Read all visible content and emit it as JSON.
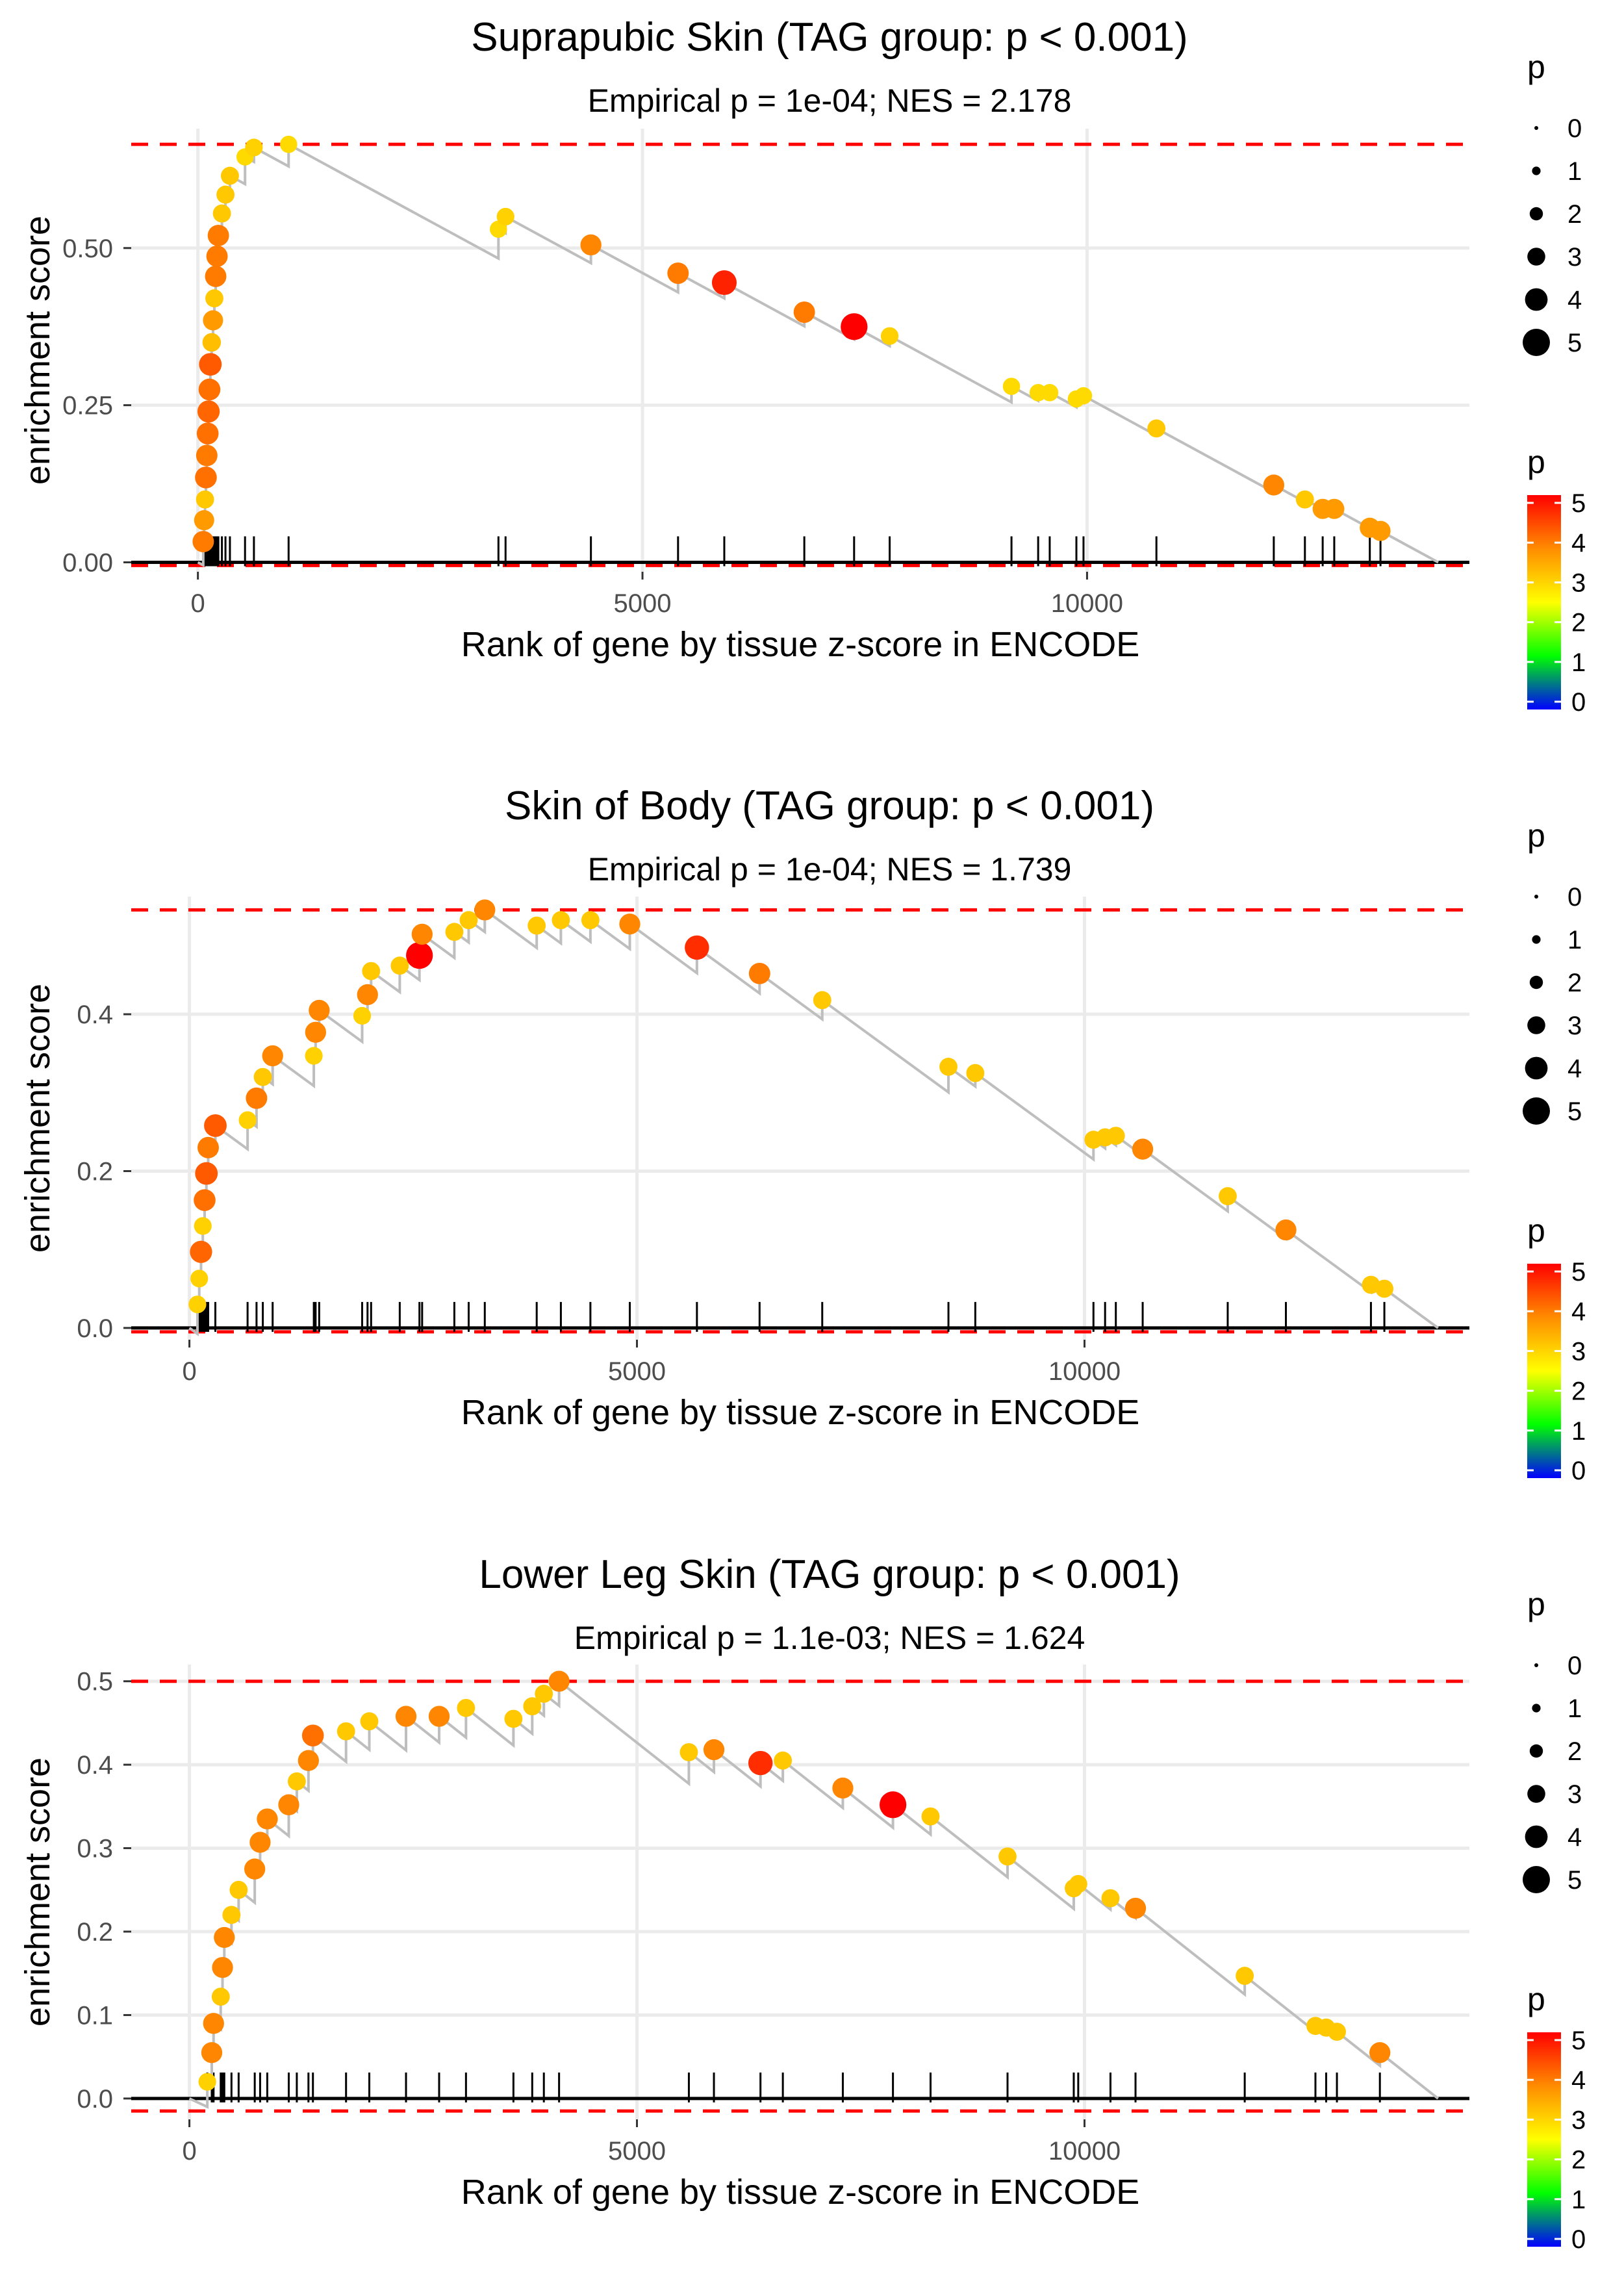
{
  "chart_data": [
    {
      "type": "scatter",
      "title": "Suprapubic Skin (TAG group: p < 0.001)",
      "subtitle": "Empirical p = 1e-04; NES = 2.178",
      "xlabel": "Rank of gene by tissue z-score in ENCODE",
      "ylabel": "enrichment score",
      "xlim": [
        -750,
        14300
      ],
      "ylim": [
        -0.015,
        0.69
      ],
      "x_ticks": [
        0,
        5000,
        10000
      ],
      "y_ticks": [
        0.0,
        0.25,
        0.5
      ],
      "y_tick_labels": [
        "0.00",
        "0.25",
        "0.50"
      ],
      "threshold_lines": [
        0.665,
        -0.005
      ],
      "end_rank": 13950,
      "points": [
        {
          "x": 60,
          "es": 0.033,
          "p": 3.9
        },
        {
          "x": 70,
          "es": 0.067,
          "p": 3.6
        },
        {
          "x": 80,
          "es": 0.1,
          "p": 3.1
        },
        {
          "x": 90,
          "es": 0.135,
          "p": 4.0
        },
        {
          "x": 100,
          "es": 0.17,
          "p": 3.9
        },
        {
          "x": 110,
          "es": 0.205,
          "p": 4.0
        },
        {
          "x": 120,
          "es": 0.24,
          "p": 4.1
        },
        {
          "x": 130,
          "es": 0.275,
          "p": 4.0
        },
        {
          "x": 140,
          "es": 0.315,
          "p": 4.2
        },
        {
          "x": 155,
          "es": 0.35,
          "p": 3.2
        },
        {
          "x": 170,
          "es": 0.385,
          "p": 3.6
        },
        {
          "x": 185,
          "es": 0.42,
          "p": 3.1
        },
        {
          "x": 200,
          "es": 0.455,
          "p": 3.9
        },
        {
          "x": 215,
          "es": 0.487,
          "p": 3.9
        },
        {
          "x": 230,
          "es": 0.52,
          "p": 3.9
        },
        {
          "x": 270,
          "es": 0.555,
          "p": 3.1
        },
        {
          "x": 310,
          "es": 0.585,
          "p": 3.1
        },
        {
          "x": 360,
          "es": 0.615,
          "p": 3.1
        },
        {
          "x": 530,
          "es": 0.645,
          "p": 2.9
        },
        {
          "x": 630,
          "es": 0.66,
          "p": 3.0
        },
        {
          "x": 1020,
          "es": 0.665,
          "p": 2.9
        },
        {
          "x": 3380,
          "es": 0.53,
          "p": 2.9
        },
        {
          "x": 3460,
          "es": 0.55,
          "p": 3.0
        },
        {
          "x": 4420,
          "es": 0.505,
          "p": 3.8
        },
        {
          "x": 5400,
          "es": 0.46,
          "p": 3.9
        },
        {
          "x": 5920,
          "es": 0.445,
          "p": 4.7
        },
        {
          "x": 6820,
          "es": 0.398,
          "p": 3.9
        },
        {
          "x": 7380,
          "es": 0.375,
          "p": 5.2
        },
        {
          "x": 7780,
          "es": 0.36,
          "p": 3.0
        },
        {
          "x": 9150,
          "es": 0.28,
          "p": 2.9
        },
        {
          "x": 9450,
          "es": 0.27,
          "p": 2.9
        },
        {
          "x": 9580,
          "es": 0.27,
          "p": 2.9
        },
        {
          "x": 9880,
          "es": 0.26,
          "p": 2.9
        },
        {
          "x": 9960,
          "es": 0.265,
          "p": 2.9
        },
        {
          "x": 10780,
          "es": 0.213,
          "p": 3.1
        },
        {
          "x": 12100,
          "es": 0.123,
          "p": 3.8
        },
        {
          "x": 12450,
          "es": 0.1,
          "p": 3.1
        },
        {
          "x": 12650,
          "es": 0.085,
          "p": 3.6
        },
        {
          "x": 12780,
          "es": 0.085,
          "p": 3.6
        },
        {
          "x": 13180,
          "es": 0.055,
          "p": 3.6
        },
        {
          "x": 13300,
          "es": 0.05,
          "p": 3.6
        }
      ]
    },
    {
      "type": "scatter",
      "title": "Skin of Body (TAG group: p < 0.001)",
      "subtitle": "Empirical p = 1e-04; NES = 1.739",
      "xlabel": "Rank of gene by tissue z-score in ENCODE",
      "ylabel": "enrichment score",
      "xlim": [
        -650,
        14300
      ],
      "ylim": [
        -0.015,
        0.55
      ],
      "x_ticks": [
        0,
        5000,
        10000
      ],
      "y_ticks": [
        0.0,
        0.2,
        0.4
      ],
      "y_tick_labels": [
        "0.0",
        "0.2",
        "0.4"
      ],
      "threshold_lines": [
        0.533,
        -0.005
      ],
      "end_rank": 13950,
      "points": [
        {
          "x": 90,
          "es": 0.03,
          "p": 3.0
        },
        {
          "x": 110,
          "es": 0.063,
          "p": 3.0
        },
        {
          "x": 130,
          "es": 0.097,
          "p": 4.1
        },
        {
          "x": 150,
          "es": 0.13,
          "p": 3.0
        },
        {
          "x": 170,
          "es": 0.163,
          "p": 4.0
        },
        {
          "x": 190,
          "es": 0.197,
          "p": 4.2
        },
        {
          "x": 210,
          "es": 0.23,
          "p": 3.9
        },
        {
          "x": 290,
          "es": 0.258,
          "p": 4.2
        },
        {
          "x": 650,
          "es": 0.265,
          "p": 3.0
        },
        {
          "x": 750,
          "es": 0.293,
          "p": 3.9
        },
        {
          "x": 820,
          "es": 0.32,
          "p": 3.1
        },
        {
          "x": 930,
          "es": 0.347,
          "p": 3.8
        },
        {
          "x": 1390,
          "es": 0.347,
          "p": 3.0
        },
        {
          "x": 1410,
          "es": 0.377,
          "p": 3.8
        },
        {
          "x": 1450,
          "es": 0.405,
          "p": 3.8
        },
        {
          "x": 1930,
          "es": 0.398,
          "p": 3.0
        },
        {
          "x": 1990,
          "es": 0.425,
          "p": 3.8
        },
        {
          "x": 2030,
          "es": 0.455,
          "p": 3.1
        },
        {
          "x": 2350,
          "es": 0.462,
          "p": 3.1
        },
        {
          "x": 2570,
          "es": 0.475,
          "p": 5.2
        },
        {
          "x": 2600,
          "es": 0.502,
          "p": 3.8
        },
        {
          "x": 2960,
          "es": 0.505,
          "p": 3.1
        },
        {
          "x": 3120,
          "es": 0.52,
          "p": 3.1
        },
        {
          "x": 3300,
          "es": 0.533,
          "p": 3.8
        },
        {
          "x": 3880,
          "es": 0.513,
          "p": 3.1
        },
        {
          "x": 4150,
          "es": 0.52,
          "p": 3.1
        },
        {
          "x": 4480,
          "es": 0.52,
          "p": 3.1
        },
        {
          "x": 4920,
          "es": 0.515,
          "p": 3.8
        },
        {
          "x": 5670,
          "es": 0.485,
          "p": 4.6
        },
        {
          "x": 6370,
          "es": 0.452,
          "p": 3.9
        },
        {
          "x": 7070,
          "es": 0.418,
          "p": 3.1
        },
        {
          "x": 8480,
          "es": 0.333,
          "p": 3.1
        },
        {
          "x": 8780,
          "es": 0.325,
          "p": 3.1
        },
        {
          "x": 10100,
          "es": 0.24,
          "p": 3.1
        },
        {
          "x": 10230,
          "es": 0.243,
          "p": 3.1
        },
        {
          "x": 10350,
          "es": 0.245,
          "p": 3.1
        },
        {
          "x": 10650,
          "es": 0.228,
          "p": 3.8
        },
        {
          "x": 11600,
          "es": 0.168,
          "p": 3.1
        },
        {
          "x": 12250,
          "es": 0.125,
          "p": 3.8
        },
        {
          "x": 13200,
          "es": 0.055,
          "p": 3.1
        },
        {
          "x": 13350,
          "es": 0.05,
          "p": 3.1
        }
      ]
    },
    {
      "type": "scatter",
      "title": "Lower Leg Skin (TAG group: p < 0.001)",
      "subtitle": "Empirical p = 1.1e-03; NES = 1.624",
      "xlabel": "Rank of gene by tissue z-score in ENCODE",
      "ylabel": "enrichment score",
      "xlim": [
        -650,
        14300
      ],
      "ylim": [
        -0.025,
        0.52
      ],
      "x_ticks": [
        0,
        5000,
        10000
      ],
      "y_ticks": [
        0.0,
        0.1,
        0.2,
        0.3,
        0.4,
        0.5
      ],
      "y_tick_labels": [
        "0.0",
        "0.1",
        "0.2",
        "0.3",
        "0.4",
        "0.5"
      ],
      "threshold_lines": [
        0.5,
        -0.015
      ],
      "end_rank": 13950,
      "points": [
        {
          "x": 200,
          "es": 0.02,
          "p": 3.0
        },
        {
          "x": 250,
          "es": 0.055,
          "p": 3.8
        },
        {
          "x": 270,
          "es": 0.09,
          "p": 3.8
        },
        {
          "x": 350,
          "es": 0.122,
          "p": 3.1
        },
        {
          "x": 370,
          "es": 0.157,
          "p": 3.8
        },
        {
          "x": 390,
          "es": 0.193,
          "p": 3.8
        },
        {
          "x": 470,
          "es": 0.22,
          "p": 3.1
        },
        {
          "x": 550,
          "es": 0.25,
          "p": 3.1
        },
        {
          "x": 730,
          "es": 0.275,
          "p": 3.8
        },
        {
          "x": 790,
          "es": 0.307,
          "p": 3.8
        },
        {
          "x": 870,
          "es": 0.335,
          "p": 3.8
        },
        {
          "x": 1110,
          "es": 0.352,
          "p": 3.8
        },
        {
          "x": 1200,
          "es": 0.38,
          "p": 3.1
        },
        {
          "x": 1330,
          "es": 0.405,
          "p": 3.8
        },
        {
          "x": 1380,
          "es": 0.435,
          "p": 4.0
        },
        {
          "x": 1750,
          "es": 0.44,
          "p": 3.1
        },
        {
          "x": 2010,
          "es": 0.452,
          "p": 3.1
        },
        {
          "x": 2420,
          "es": 0.458,
          "p": 3.8
        },
        {
          "x": 2790,
          "es": 0.458,
          "p": 3.8
        },
        {
          "x": 3090,
          "es": 0.468,
          "p": 3.1
        },
        {
          "x": 3620,
          "es": 0.455,
          "p": 3.1
        },
        {
          "x": 3830,
          "es": 0.47,
          "p": 3.1
        },
        {
          "x": 3960,
          "es": 0.485,
          "p": 3.1
        },
        {
          "x": 4130,
          "es": 0.5,
          "p": 3.8
        },
        {
          "x": 5580,
          "es": 0.415,
          "p": 3.1
        },
        {
          "x": 5860,
          "es": 0.418,
          "p": 3.8
        },
        {
          "x": 6380,
          "es": 0.402,
          "p": 4.6
        },
        {
          "x": 6630,
          "es": 0.405,
          "p": 3.1
        },
        {
          "x": 7300,
          "es": 0.372,
          "p": 3.8
        },
        {
          "x": 7860,
          "es": 0.352,
          "p": 5.2
        },
        {
          "x": 8280,
          "es": 0.338,
          "p": 3.1
        },
        {
          "x": 9140,
          "es": 0.29,
          "p": 3.1
        },
        {
          "x": 9880,
          "es": 0.252,
          "p": 3.1
        },
        {
          "x": 9930,
          "es": 0.257,
          "p": 3.1
        },
        {
          "x": 10290,
          "es": 0.24,
          "p": 3.1
        },
        {
          "x": 10570,
          "es": 0.228,
          "p": 3.8
        },
        {
          "x": 11790,
          "es": 0.147,
          "p": 3.1
        },
        {
          "x": 12580,
          "es": 0.087,
          "p": 3.1
        },
        {
          "x": 12700,
          "es": 0.085,
          "p": 3.1
        },
        {
          "x": 12820,
          "es": 0.08,
          "p": 3.1
        },
        {
          "x": 13300,
          "es": 0.055,
          "p": 3.8
        }
      ]
    }
  ],
  "legend": {
    "size_title": "p",
    "size_labels": [
      "0",
      "1",
      "2",
      "3",
      "4",
      "5"
    ],
    "color_title": "p",
    "color_labels": [
      "5",
      "4",
      "3",
      "2",
      "1",
      "0"
    ],
    "color_stops": [
      "#0000ff",
      "#00ff00",
      "#ffff00",
      "#ff8c00",
      "#ff0000"
    ]
  },
  "colors": {
    "threshold_line": "#ff0000",
    "running_line": "#bebebe",
    "grid": "#ebebeb",
    "axis": "#000000"
  }
}
